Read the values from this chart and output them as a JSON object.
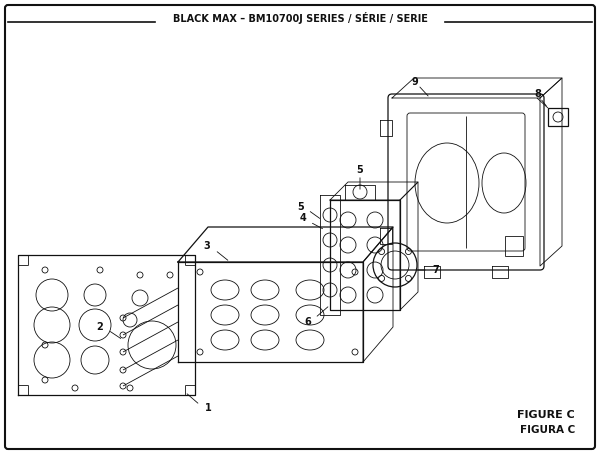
{
  "title": "BLACK MAX – BM10700J SERIES / SÉRIE / SERIE",
  "figure_label_1": "FIGURE C",
  "figure_label_2": "FIGURA C",
  "bg_color": "#ffffff",
  "line_color": "#111111",
  "text_color": "#111111",
  "figsize": [
    6.0,
    4.55
  ],
  "dpi": 100
}
